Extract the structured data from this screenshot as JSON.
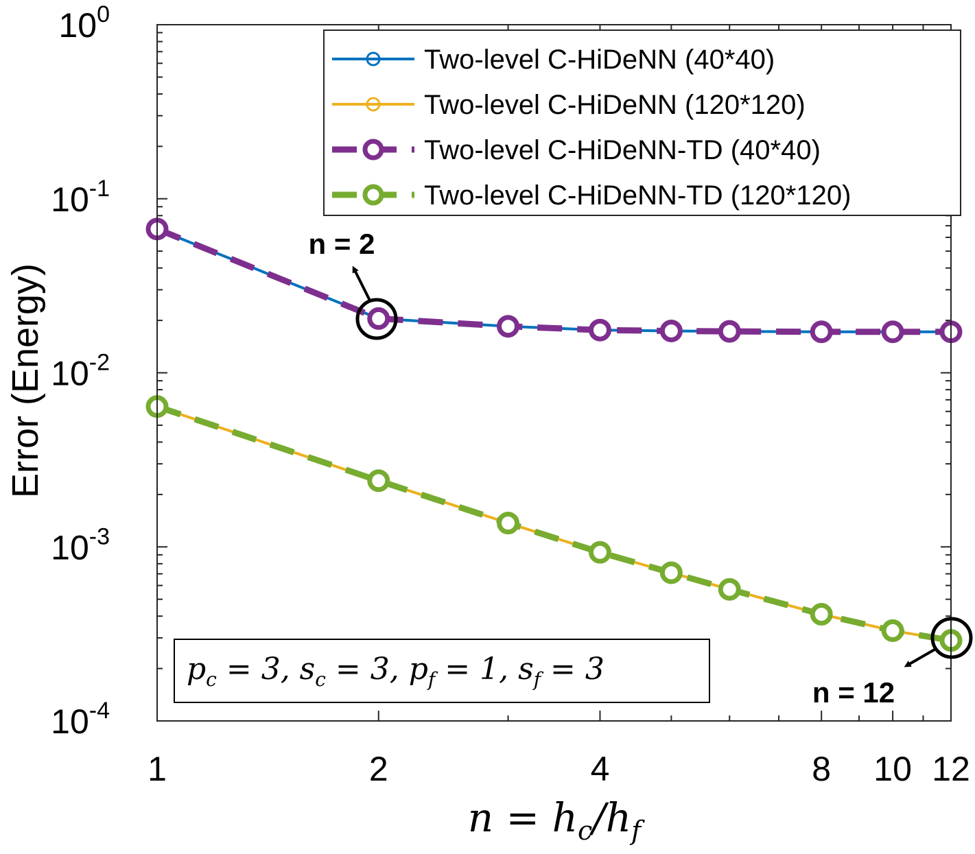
{
  "chart_data": {
    "type": "line",
    "x_scale": "log",
    "y_scale": "log",
    "xlim": [
      1,
      12
    ],
    "ylim": [
      0.0001,
      1
    ],
    "x_ticks": [
      {
        "value": 1,
        "label": "1"
      },
      {
        "value": 2,
        "label": "2"
      },
      {
        "value": 4,
        "label": "4"
      },
      {
        "value": 8,
        "label": "8"
      },
      {
        "value": 10,
        "label": "10"
      },
      {
        "value": 12,
        "label": "12"
      }
    ],
    "y_ticks": [
      {
        "value": 0.0001,
        "base": "10",
        "exp": "-4"
      },
      {
        "value": 0.001,
        "base": "10",
        "exp": "-3"
      },
      {
        "value": 0.01,
        "base": "10",
        "exp": "-2"
      },
      {
        "value": 0.1,
        "base": "10",
        "exp": "-1"
      },
      {
        "value": 1,
        "base": "10",
        "exp": "0"
      }
    ],
    "xlabel": "n = h_c/h_f",
    "ylabel": "Error (Energy)",
    "legend_position": "top-right",
    "series": [
      {
        "name": "Two-level C-HiDeNN (40*40)",
        "color": "#0072BD",
        "style": "solid",
        "marker": "small",
        "x": [
          1,
          2,
          3,
          4,
          5,
          6,
          8,
          10,
          12
        ],
        "y": [
          0.067,
          0.0205,
          0.0185,
          0.0176,
          0.0174,
          0.0173,
          0.0172,
          0.0172,
          0.0172
        ]
      },
      {
        "name": "Two-level C-HiDeNN (120*120)",
        "color": "#EDB120",
        "style": "solid",
        "marker": "small",
        "x": [
          1,
          2,
          3,
          4,
          5,
          6,
          8,
          10,
          12
        ],
        "y": [
          0.0064,
          0.0024,
          0.00137,
          0.00093,
          0.00071,
          0.00057,
          0.00041,
          0.00033,
          0.00029
        ]
      },
      {
        "name": "Two-level C-HiDeNN-TD (40*40)",
        "color": "#7E2F8E",
        "style": "dashed",
        "marker": "large",
        "x": [
          1,
          2,
          3,
          4,
          5,
          6,
          8,
          10,
          12
        ],
        "y": [
          0.067,
          0.0205,
          0.0185,
          0.0176,
          0.0174,
          0.0173,
          0.0172,
          0.0172,
          0.0172
        ]
      },
      {
        "name": "Two-level C-HiDeNN-TD (120*120)",
        "color": "#77AC30",
        "style": "dashed",
        "marker": "large",
        "x": [
          1,
          2,
          3,
          4,
          5,
          6,
          8,
          10,
          12
        ],
        "y": [
          0.0064,
          0.0024,
          0.00137,
          0.00093,
          0.00071,
          0.00057,
          0.00041,
          0.00033,
          0.00029
        ]
      }
    ],
    "annotations": [
      {
        "text": "n = 2",
        "x": 2,
        "y": 0.0205
      },
      {
        "text": "n = 12",
        "x": 12,
        "y": 0.00029
      }
    ],
    "param_box": "p_c = 3, s_c = 3, p_f = 1, s_f = 3"
  }
}
